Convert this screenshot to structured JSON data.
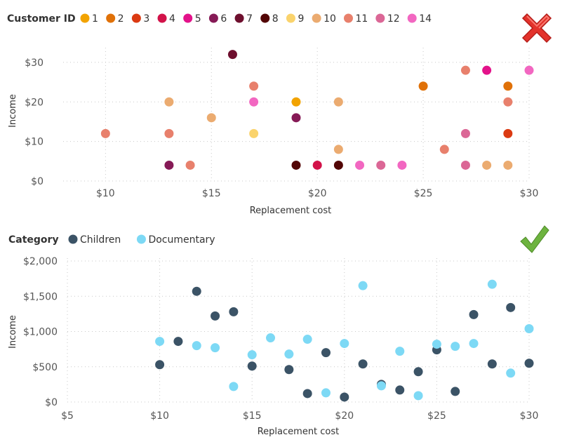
{
  "chart_data": [
    {
      "type": "scatter",
      "legend_title": "Customer ID",
      "legend_placement": "top-left",
      "xlabel": "Replacement cost",
      "ylabel": "Income",
      "x_ticks": [
        "$10",
        "$15",
        "$20",
        "$25",
        "$30"
      ],
      "x_tick_values": [
        10,
        15,
        20,
        25,
        30
      ],
      "y_ticks": [
        "$0",
        "$10",
        "$20",
        "$30"
      ],
      "y_tick_values": [
        0,
        10,
        20,
        30
      ],
      "xlim": [
        8,
        30
      ],
      "ylim": [
        0,
        33
      ],
      "grid": true,
      "status_icon": "red-x-icon",
      "series": [
        {
          "name": "1",
          "color": "#F2A300",
          "x": [
            19
          ],
          "y": [
            20
          ]
        },
        {
          "name": "2",
          "color": "#E07108",
          "x": [
            25,
            29
          ],
          "y": [
            24,
            24
          ]
        },
        {
          "name": "3",
          "color": "#DB3A12",
          "x": [
            29
          ],
          "y": [
            12
          ]
        },
        {
          "name": "4",
          "color": "#D21249",
          "x": [
            20
          ],
          "y": [
            4
          ]
        },
        {
          "name": "5",
          "color": "#E3128A",
          "x": [
            28
          ],
          "y": [
            28
          ]
        },
        {
          "name": "6",
          "color": "#861A56",
          "x": [
            13,
            19
          ],
          "y": [
            4,
            16
          ]
        },
        {
          "name": "7",
          "color": "#6E0F2E",
          "x": [
            16
          ],
          "y": [
            32
          ]
        },
        {
          "name": "8",
          "color": "#520505",
          "x": [
            19,
            21
          ],
          "y": [
            4,
            4
          ]
        },
        {
          "name": "9",
          "color": "#FAD36C",
          "x": [
            17
          ],
          "y": [
            12
          ]
        },
        {
          "name": "10",
          "color": "#EBAB70",
          "x": [
            13,
            15,
            21,
            21,
            28,
            29
          ],
          "y": [
            20,
            16,
            8,
            20,
            4,
            4
          ]
        },
        {
          "name": "11",
          "color": "#E8806C",
          "x": [
            10,
            13,
            14,
            17,
            26,
            27,
            29
          ],
          "y": [
            12,
            12,
            4,
            24,
            8,
            28,
            20
          ]
        },
        {
          "name": "12",
          "color": "#DB6796",
          "x": [
            23,
            27,
            27
          ],
          "y": [
            4,
            12,
            4
          ]
        },
        {
          "name": "14",
          "color": "#F267C1",
          "x": [
            17,
            22,
            24,
            30
          ],
          "y": [
            20,
            4,
            4,
            28
          ]
        }
      ]
    },
    {
      "type": "scatter",
      "legend_title": "Category",
      "legend_placement": "top-left",
      "xlabel": "Replacement cost",
      "ylabel": "Income",
      "x_ticks": [
        "$5",
        "$10",
        "$15",
        "$20",
        "$25",
        "$30"
      ],
      "x_tick_values": [
        5,
        10,
        15,
        20,
        25,
        30
      ],
      "y_ticks": [
        "$0",
        "$500",
        "$1,000",
        "$1,500",
        "$2,000"
      ],
      "y_tick_values": [
        0,
        500,
        1000,
        1500,
        2000
      ],
      "xlim": [
        5,
        30
      ],
      "ylim": [
        0,
        2000
      ],
      "grid": true,
      "status_icon": "green-check-icon",
      "series": [
        {
          "name": "Children",
          "color": "#3B5366",
          "x": [
            10,
            11,
            12,
            13,
            14,
            15,
            17,
            18,
            19,
            20,
            21,
            22,
            23,
            24,
            25,
            26,
            27,
            28,
            29,
            30
          ],
          "y": [
            530,
            860,
            1570,
            1220,
            1280,
            510,
            460,
            120,
            700,
            70,
            540,
            250,
            170,
            430,
            740,
            150,
            1240,
            540,
            1340,
            550
          ]
        },
        {
          "name": "Documentary",
          "color": "#7DD9F5",
          "x": [
            10,
            12,
            13,
            14,
            15,
            16,
            17,
            18,
            19,
            20,
            21,
            22,
            23,
            24,
            25,
            26,
            27,
            28,
            29,
            30
          ],
          "y": [
            860,
            800,
            770,
            220,
            670,
            910,
            680,
            890,
            130,
            830,
            1650,
            230,
            720,
            90,
            820,
            790,
            830,
            1670,
            410,
            1040
          ]
        }
      ]
    }
  ]
}
